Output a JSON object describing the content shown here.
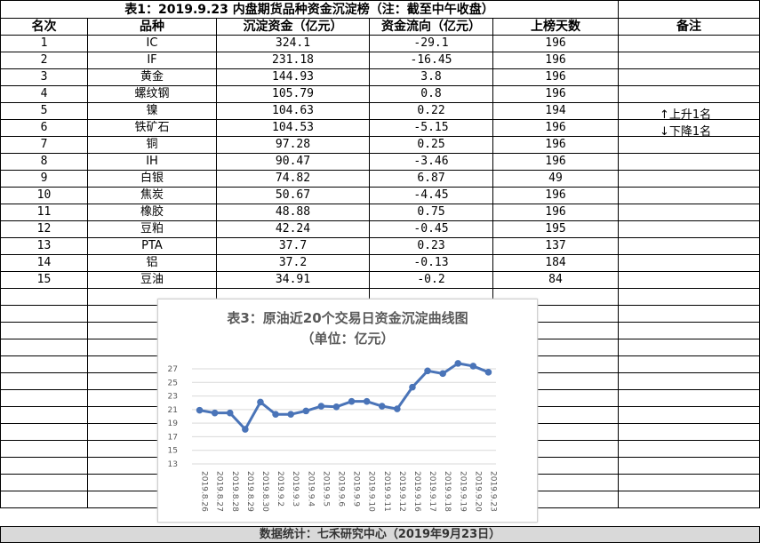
{
  "table": {
    "title": "表1：2019.9.23 内盘期货品种资金沉淀榜（注：截至中午收盘）",
    "headers": [
      "名次",
      "品种",
      "沉淀资金（亿元）",
      "资金流向（亿元）",
      "上榜天数",
      "备注"
    ],
    "rows": [
      [
        "1",
        "IC",
        "324.1",
        "-29.1",
        "196"
      ],
      [
        "2",
        "IF",
        "231.18",
        "-16.45",
        "196"
      ],
      [
        "3",
        "黄金",
        "144.93",
        "3.8",
        "196"
      ],
      [
        "4",
        "螺纹钢",
        "105.79",
        "0.8",
        "196"
      ],
      [
        "5",
        "镍",
        "104.63",
        "0.22",
        "194"
      ],
      [
        "6",
        "铁矿石",
        "104.53",
        "-5.15",
        "196"
      ],
      [
        "7",
        "铜",
        "97.28",
        "0.25",
        "196"
      ],
      [
        "8",
        "IH",
        "90.47",
        "-3.46",
        "196"
      ],
      [
        "9",
        "白银",
        "74.82",
        "6.87",
        "49"
      ],
      [
        "10",
        "焦炭",
        "50.67",
        "-4.45",
        "196"
      ],
      [
        "11",
        "橡胶",
        "48.88",
        "0.75",
        "196"
      ],
      [
        "12",
        "豆粕",
        "42.24",
        "-0.45",
        "195"
      ],
      [
        "13",
        "PTA",
        "37.7",
        "0.23",
        "137"
      ],
      [
        "14",
        "铝",
        "37.2",
        "-0.13",
        "184"
      ],
      [
        "15",
        "豆油",
        "34.91",
        "-0.2",
        "84"
      ]
    ],
    "notes": [
      "上升1名",
      "下降1名"
    ],
    "note_icons": [
      "arrow-up-icon",
      "arrow-down-icon"
    ]
  },
  "footer": "数据统计：七禾研究中心（2019年9月23日）",
  "chart_data": {
    "type": "line",
    "title": "表3：原油近20个交易日资金沉淀曲线图",
    "subtitle": "（单位：亿元）",
    "x": [
      "2019.8.26",
      "2019.8.27",
      "2019.8.28",
      "2019.8.29",
      "2019.8.30",
      "2019.9.2",
      "2019.9.3",
      "2019.9.4",
      "2019.9.5",
      "2019.9.6",
      "2019.9.9",
      "2019.9.10",
      "2019.9.11",
      "2019.9.12",
      "2019.9.16",
      "2019.9.17",
      "2019.9.18",
      "2019.9.19",
      "2019.9.20",
      "2019.9.23"
    ],
    "series": [
      {
        "values": [
          20.9,
          20.5,
          20.5,
          18.1,
          22.1,
          20.3,
          20.3,
          20.8,
          21.5,
          21.4,
          22.2,
          22.2,
          21.5,
          21.1,
          24.3,
          26.7,
          26.3,
          27.8,
          27.4,
          26.5
        ]
      }
    ],
    "ylim": [
      13,
      27
    ],
    "yticks": [
      13,
      15,
      17,
      19,
      21,
      23,
      25,
      27
    ],
    "color": "#4a74b8",
    "grid": true
  }
}
